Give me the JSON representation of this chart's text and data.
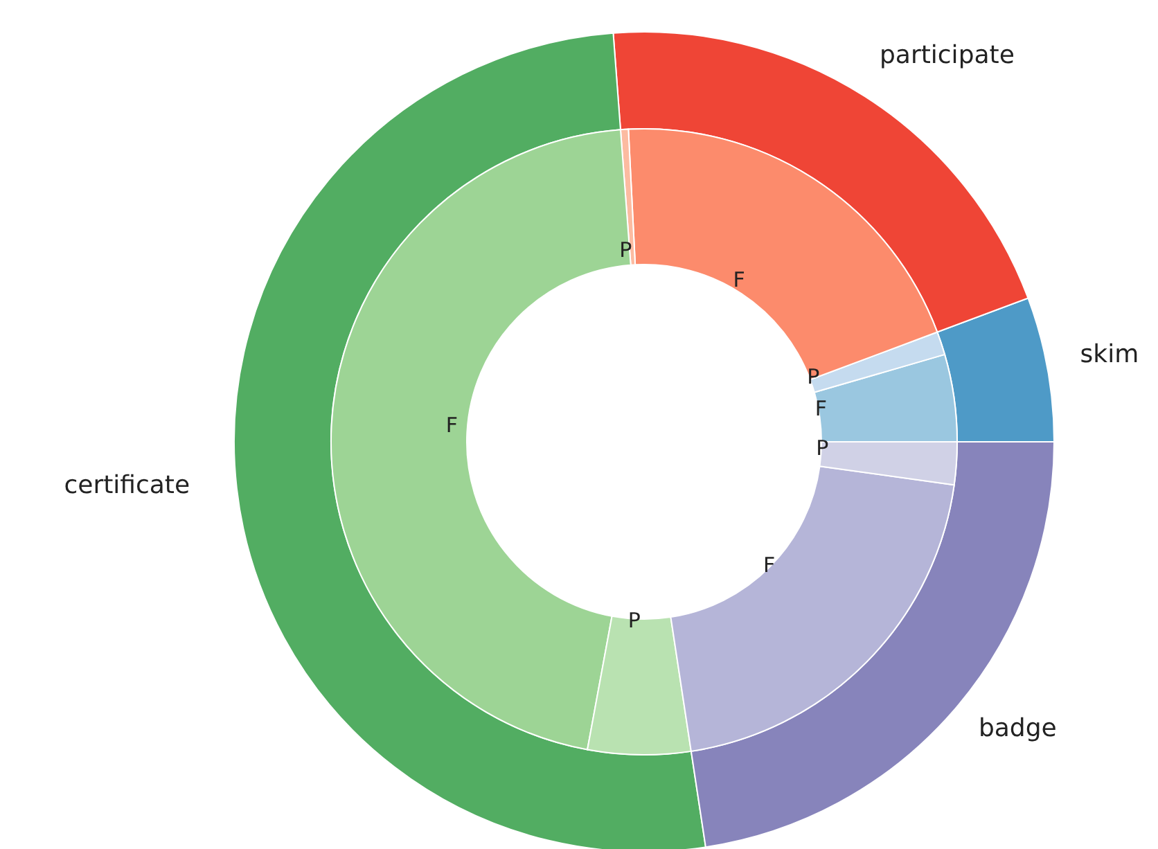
{
  "chart_data": [
    {
      "type": "donut",
      "categories": [
        "skim",
        "participate",
        "certificate",
        "badge"
      ],
      "values": [
        5.7,
        20.5,
        51.2,
        22.6
      ],
      "colors": [
        "#4e9ac7",
        "#ef4536",
        "#52ad62",
        "#8784bb"
      ]
    },
    {
      "type": "donut",
      "categories": [
        "F",
        "P",
        "F",
        "P",
        "F",
        "P",
        "F",
        "P"
      ],
      "values": [
        4.5,
        1.2,
        20.1,
        0.4,
        45.9,
        5.3,
        20.4,
        2.2
      ],
      "colors": [
        "#9ac7e0",
        "#c5dbef",
        "#fc8b6c",
        "#fcbba1",
        "#9dd495",
        "#b9e2b1",
        "#b5b5d8",
        "#d0d1e6"
      ]
    }
  ]
}
